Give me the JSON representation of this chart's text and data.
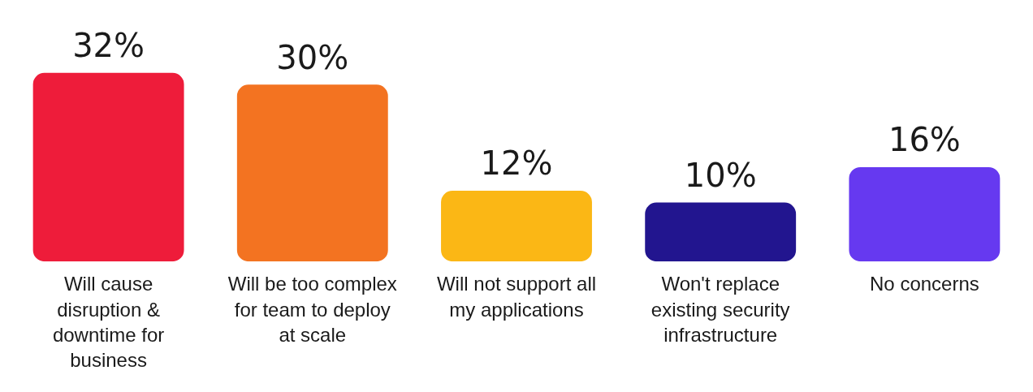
{
  "chart_data": {
    "type": "bar",
    "categories": [
      "Will cause disruption & downtime for business",
      "Will be too complex for team to deploy at scale",
      "Will not support all my applications",
      "Won't replace existing security infrastructure",
      "No concerns"
    ],
    "values": [
      32,
      30,
      12,
      10,
      16
    ],
    "value_labels": [
      "32%",
      "30%",
      "12%",
      "10%",
      "16%"
    ],
    "colors": [
      "#ee1c3a",
      "#f37321",
      "#fbb715",
      "#22158f",
      "#6639f0"
    ],
    "grid": false,
    "legend": false
  }
}
